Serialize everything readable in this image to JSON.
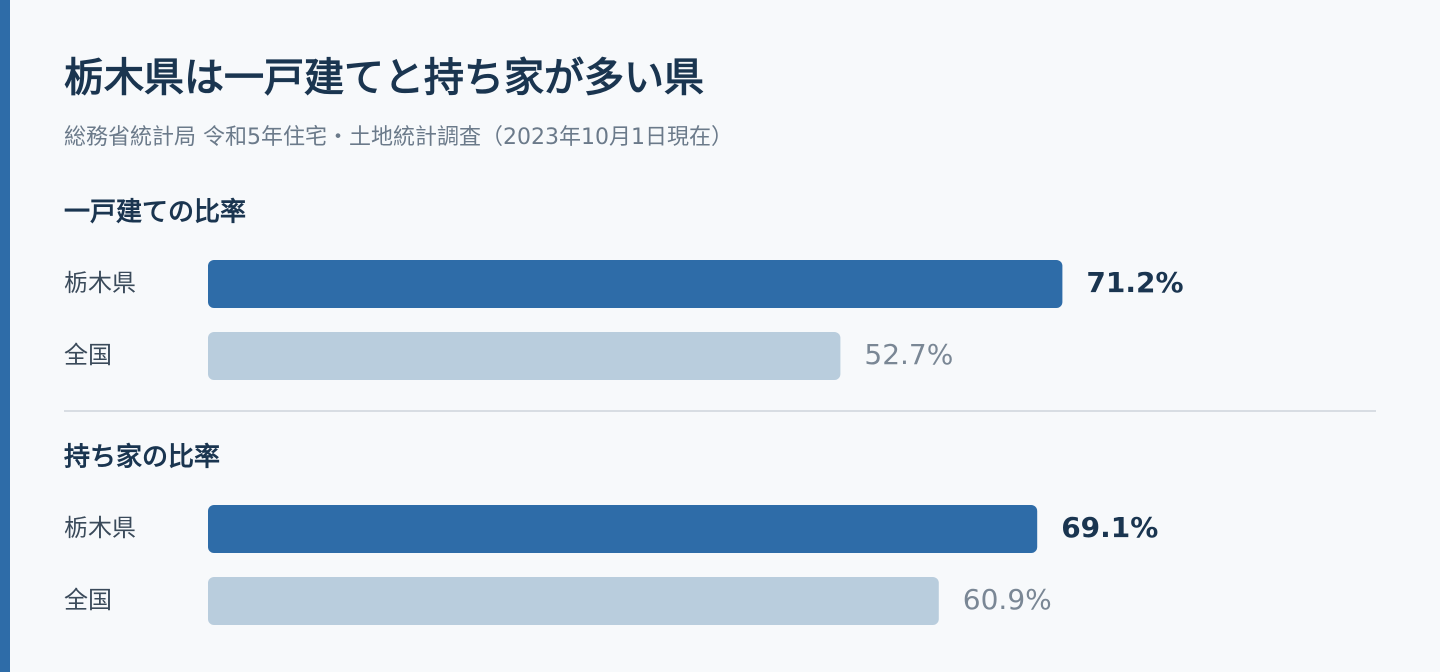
{
  "header": {
    "title": "栃木県は一戸建てと持ち家が多い県",
    "subtitle": "総務省統計局 令和5年住宅・土地統計調査（2023年10月1日現在）"
  },
  "chart_data": [
    {
      "type": "bar",
      "title": "一戸建ての比率",
      "categories": [
        "栃木県",
        "全国"
      ],
      "values": [
        71.2,
        52.7
      ],
      "value_labels": [
        "71.2%",
        "52.7%"
      ],
      "colors": [
        "#2e6ca8",
        "#b9cddd"
      ],
      "xlim": [
        0,
        100
      ]
    },
    {
      "type": "bar",
      "title": "持ち家の比率",
      "categories": [
        "栃木県",
        "全国"
      ],
      "values": [
        69.1,
        60.9
      ],
      "value_labels": [
        "69.1%",
        "60.9%"
      ],
      "colors": [
        "#2e6ca8",
        "#b9cddd"
      ],
      "xlim": [
        0,
        100
      ]
    }
  ]
}
